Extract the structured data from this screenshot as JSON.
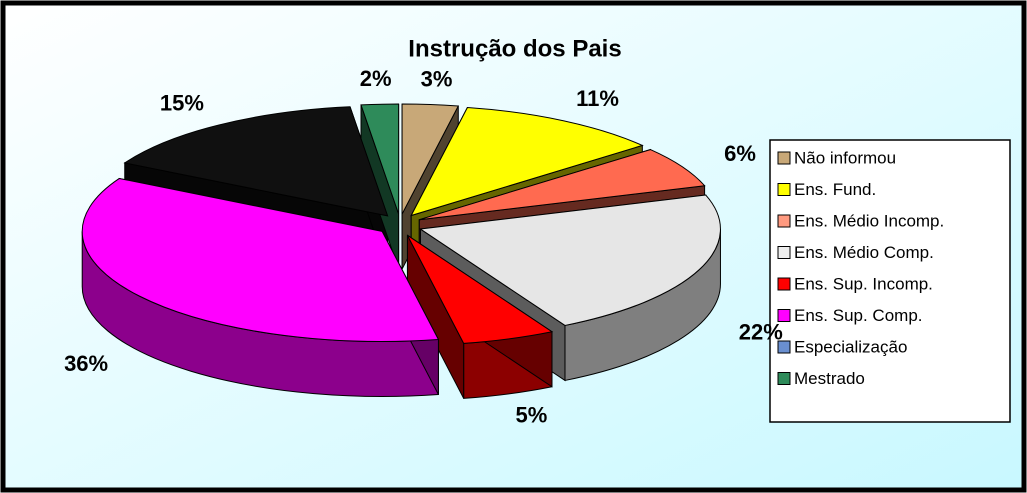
{
  "chart_data": {
    "type": "pie",
    "title": "Instrução dos Pais",
    "categories": [
      "Não informou",
      "Ens. Fund.",
      "Ens. Médio Incomp.",
      "Ens. Médio Comp.",
      "Ens. Sup. Incomp.",
      "Ens. Sup. Comp.",
      "Especialização",
      "Mestrado"
    ],
    "values": [
      3,
      11,
      6,
      22,
      5,
      36,
      15,
      2
    ],
    "value_labels": [
      "3%",
      "11%",
      "6%",
      "22%",
      "5%",
      "36%",
      "15%",
      "2%"
    ],
    "colors": [
      "#c8a878",
      "#ffff00",
      "#ff6a50",
      "#e6e6e6",
      "#ff0000",
      "#ff00ff",
      "#101010",
      "#2e8b5a"
    ],
    "legend_colors": [
      "#c8a878",
      "#ffff00",
      "#ff9a80",
      "#eeeeee",
      "#ff0000",
      "#ff00ff",
      "#6a8fd0",
      "#2e8b5a"
    ],
    "legend": "right"
  }
}
